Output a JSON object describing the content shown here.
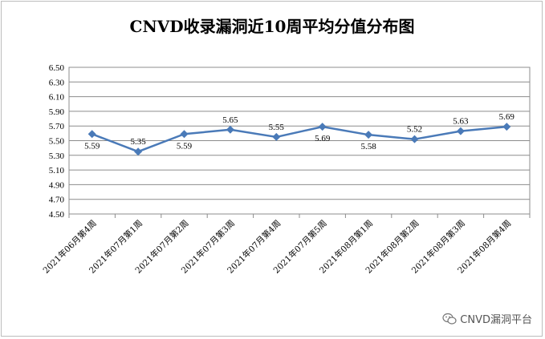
{
  "chart_data": {
    "type": "line",
    "title": "CNVD收录漏洞近10周平均分值分布图",
    "categories": [
      "2021年06月第4周",
      "2021年07月第1周",
      "2021年07月第2周",
      "2021年07月第3周",
      "2021年07月第4周",
      "2021年07月第5周",
      "2021年08月第1周",
      "2021年08月第2周",
      "2021年08月第3周",
      "2021年08月第4周"
    ],
    "values": [
      5.59,
      5.35,
      5.59,
      5.65,
      5.55,
      5.69,
      5.58,
      5.52,
      5.63,
      5.69
    ],
    "data_labels": [
      "5.59",
      "5.35",
      "5.59",
      "5.65",
      "5.55",
      "5.69",
      "5.58",
      "5.52",
      "5.63",
      "5.69"
    ],
    "label_position": [
      "below",
      "above",
      "below",
      "above",
      "above",
      "below",
      "below",
      "above",
      "above",
      "above"
    ],
    "ylim": [
      4.5,
      6.5
    ],
    "yticks": [
      "4.50",
      "4.70",
      "4.90",
      "5.10",
      "5.30",
      "5.50",
      "5.70",
      "5.90",
      "6.10",
      "6.30",
      "6.50"
    ],
    "grid": true,
    "legend": "none",
    "line_color": "#4a7ab8",
    "marker": "diamond",
    "xlabel": "",
    "ylabel": ""
  },
  "watermark": {
    "text": "CNVD漏洞平台",
    "icon": "wechat-icon"
  }
}
